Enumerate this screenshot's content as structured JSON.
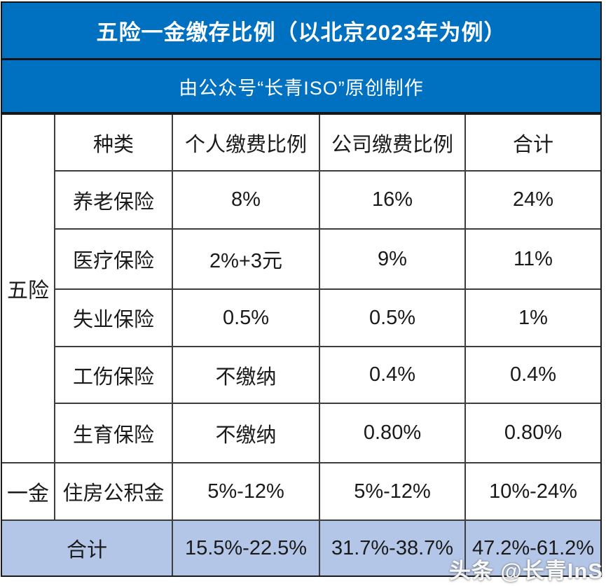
{
  "header": {
    "title": "五险一金缴存比例（以北京2023年为例）",
    "subtitle": "由公众号“长青ISO”原创制作"
  },
  "table": {
    "group_five_label": "五险",
    "group_one_label": "一金",
    "columns": [
      "种类",
      "个人缴费比例",
      "公司缴费比例",
      "合计"
    ],
    "rows": [
      {
        "type": "养老保险",
        "personal": "8%",
        "company": "16%",
        "total": "24%"
      },
      {
        "type": "医疗保险",
        "personal": "2%+3元",
        "company": "9%",
        "total": "11%"
      },
      {
        "type": "失业保险",
        "personal": "0.5%",
        "company": "0.5%",
        "total": "1%"
      },
      {
        "type": "工伤保险",
        "personal": "不缴纳",
        "company": "0.4%",
        "total": "0.4%"
      },
      {
        "type": "生育保险",
        "personal": "不缴纳",
        "company": "0.80%",
        "total": "0.80%"
      },
      {
        "type": "住房公积金",
        "personal": "5%-12%",
        "company": "5%-12%",
        "total": "10%-24%"
      }
    ],
    "summary": {
      "label": "合计",
      "personal": "15.5%-22.5%",
      "company": "31.7%-38.7%",
      "total": "47.2%-61.2%"
    }
  },
  "watermark": "头条 @长青InS",
  "colors": {
    "bar_blue": "#0070C0",
    "summary_row_bg": "#B4C6E7",
    "grid_line": "#3d3d3d",
    "bar_text": "#ffffff",
    "cell_text": "#1a1a1a"
  }
}
